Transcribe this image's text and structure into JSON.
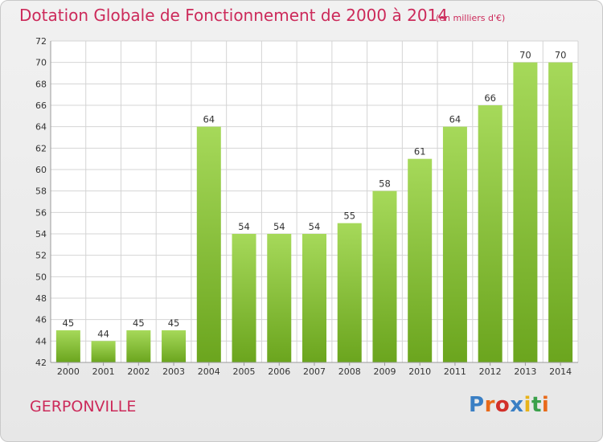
{
  "header": {
    "title": "Dotation Globale de Fonctionnement de 2000 à 2014",
    "unit": "(en milliers d'€)"
  },
  "footer": {
    "commune": "GERPONVILLE",
    "logo_text": "Proxiti"
  },
  "colors": {
    "title": "#cc2a5a",
    "bar_top": "#a6d95a",
    "bar_bottom": "#6ba51e",
    "grid": "#d4d4d4",
    "logo": [
      "#3a7fc4",
      "#e86a1a",
      "#d2302a",
      "#3a7fc4",
      "#e8b31a",
      "#3aa04a",
      "#e86a1a"
    ]
  },
  "chart_data": {
    "type": "bar",
    "categories": [
      "2000",
      "2001",
      "2002",
      "2003",
      "2004",
      "2005",
      "2006",
      "2007",
      "2008",
      "2009",
      "2010",
      "2011",
      "2012",
      "2013",
      "2014"
    ],
    "values": [
      45,
      44,
      45,
      45,
      64,
      54,
      54,
      54,
      55,
      58,
      61,
      64,
      66,
      70,
      70
    ],
    "title": "Dotation Globale de Fonctionnement de 2000 à 2014",
    "ylim": [
      42,
      72
    ],
    "yticks": [
      42,
      44,
      46,
      48,
      50,
      52,
      54,
      56,
      58,
      60,
      62,
      64,
      66,
      68,
      70,
      72
    ],
    "grid": true,
    "data_labels": true
  }
}
